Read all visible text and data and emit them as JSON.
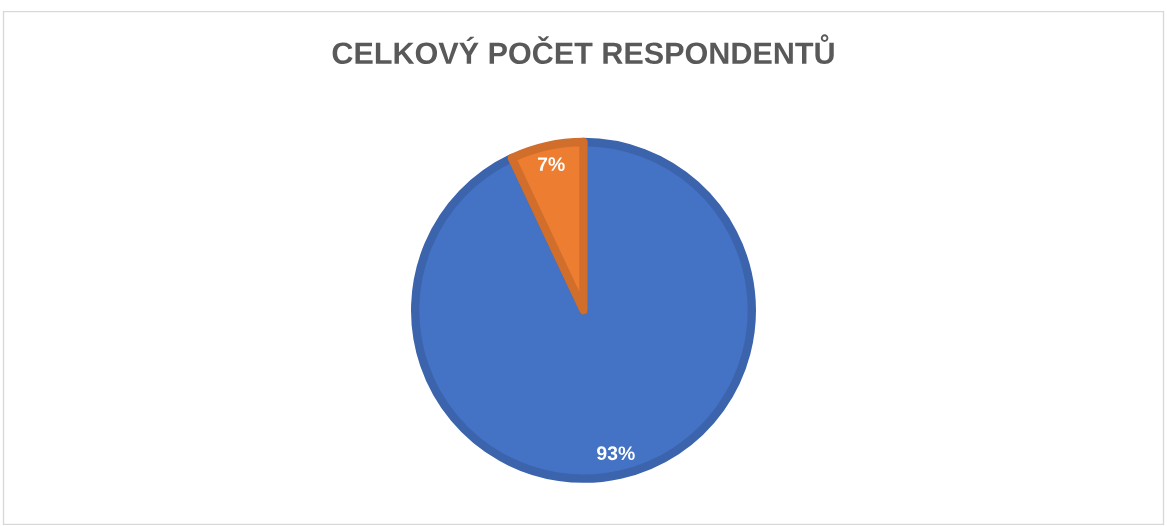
{
  "chart_data": {
    "type": "pie",
    "title": "CELKOVÝ POČET RESPONDENTŮ",
    "categories": [
      null,
      null
    ],
    "values": [
      93,
      7
    ],
    "colors": [
      "#4472c4",
      "#ed7d31"
    ],
    "value_labels": [
      "93%",
      "7%"
    ]
  }
}
